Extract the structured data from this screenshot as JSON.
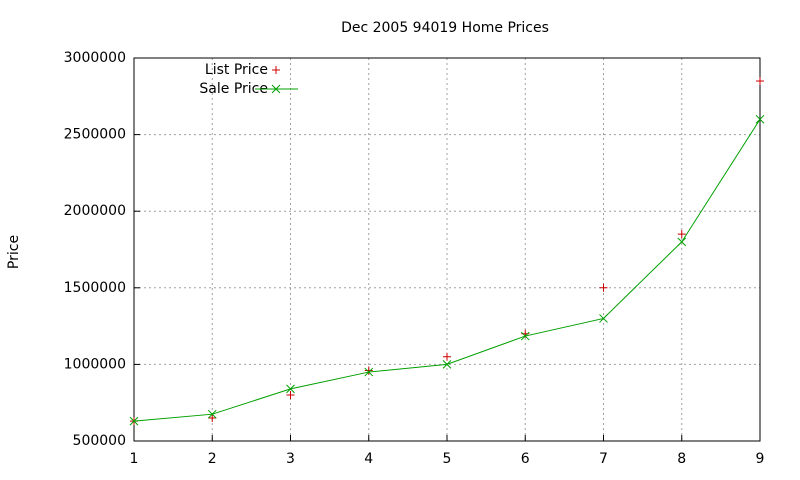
{
  "chart_data": {
    "type": "line",
    "title": "Dec 2005 94019 Home Prices",
    "y_label": "Price",
    "x": [
      1,
      2,
      3,
      4,
      5,
      6,
      7,
      8,
      9
    ],
    "series": [
      {
        "name": "List Price",
        "color": "#cc0000",
        "style": "points",
        "marker": "plus",
        "values": [
          630000,
          650000,
          800000,
          960000,
          1050000,
          1200000,
          1500000,
          1850000,
          2850000
        ]
      },
      {
        "name": "Sale Price",
        "color": "#00a000",
        "style": "linespoints",
        "marker": "cross",
        "values": [
          630000,
          675000,
          840000,
          950000,
          1000000,
          1185000,
          1300000,
          1800000,
          2600000
        ]
      }
    ],
    "xlim": [
      1,
      9
    ],
    "xticks": [
      1,
      2,
      3,
      4,
      5,
      6,
      7,
      8,
      9
    ],
    "ylim": [
      500000,
      3000000
    ],
    "yticks": [
      500000,
      1000000,
      1500000,
      2000000,
      2500000,
      3000000
    ],
    "grid": true,
    "legend": "top-left"
  }
}
